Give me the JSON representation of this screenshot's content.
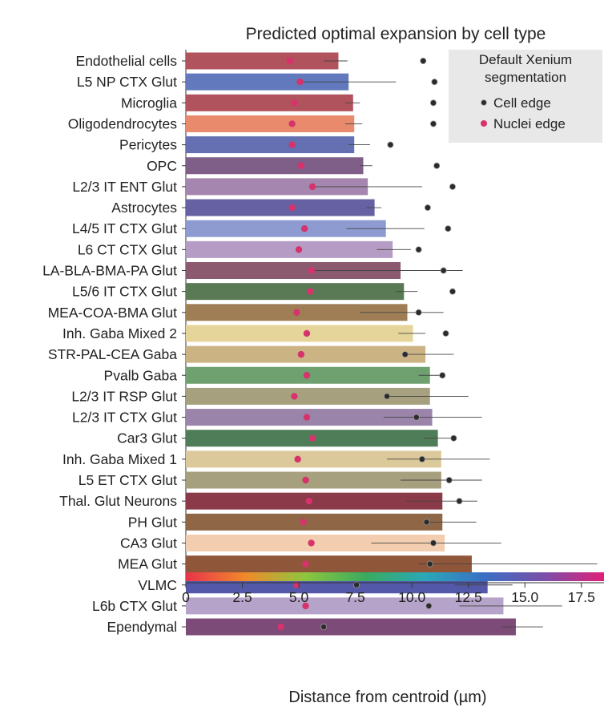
{
  "chart_data": {
    "type": "bar",
    "title": "Predicted optimal expansion by cell type",
    "xlabel": "Distance from centroid (µm)",
    "ylabel": "",
    "xlim": [
      0,
      18.5
    ],
    "xticks": [
      0,
      2.5,
      5.0,
      7.5,
      10.0,
      12.5,
      15.0,
      17.5
    ],
    "xtick_labels": [
      "0",
      "2.5",
      "5.0",
      "7.5",
      "10.0",
      "12.5",
      "15.0",
      "17.5"
    ],
    "orientation": "horizontal",
    "legend": {
      "title_line1": "Default Xenium",
      "title_line2": "segmentation",
      "position": "top-right",
      "entries": [
        {
          "label": "Cell edge",
          "color": "#2b2b2b"
        },
        {
          "label": "Nuclei edge",
          "color": "#d6336c"
        }
      ]
    },
    "colorbar": {
      "stops": [
        "#e8334a",
        "#f08a2a",
        "#8dc63f",
        "#3aaa5e",
        "#2aa8b8",
        "#3a6fc4",
        "#7a4fa8",
        "#e0207a"
      ]
    },
    "categories": [
      "Endothelial cells",
      "L5 NP CTX Glut",
      "Microglia",
      "Oligodendrocytes",
      "Pericytes",
      "OPC",
      "L2/3 IT ENT Glut",
      "Astrocytes",
      "L4/5 IT CTX Glut",
      "L6 CT CTX Glut",
      "LA-BLA-BMA-PA Glut",
      "L5/6 IT CTX Glut",
      "MEA-COA-BMA Glut",
      "Inh. Gaba Mixed 2",
      "STR-PAL-CEA Gaba",
      "Pvalb Gaba",
      "L2/3 IT RSP Glut",
      "L2/3 IT CTX Glut",
      "Car3 Glut",
      "Inh. Gaba Mixed 1",
      "L5 ET CTX Glut",
      "Thal. Glut Neurons",
      "PH Glut",
      "CA3 Glut",
      "MEA Glut",
      "VLMC",
      "L6b CTX Glut",
      "Ependymal"
    ],
    "series": [
      {
        "name": "Predicted optimal expansion",
        "values": [
          6.75,
          7.2,
          7.4,
          7.45,
          7.45,
          7.85,
          8.05,
          8.35,
          8.85,
          9.15,
          9.5,
          9.65,
          9.8,
          10.05,
          10.6,
          10.8,
          10.8,
          10.9,
          11.15,
          11.3,
          11.3,
          11.35,
          11.35,
          11.45,
          12.65,
          13.35,
          14.05,
          14.6
        ],
        "colors": [
          "#b0535c",
          "#6279bd",
          "#b0535c",
          "#e98a6d",
          "#6470b2",
          "#7f5e88",
          "#a486ae",
          "#6561a3",
          "#8e9bd0",
          "#b49cc4",
          "#8b5a6f",
          "#5a7a55",
          "#a07e55",
          "#e6d59a",
          "#cbb384",
          "#6ea070",
          "#a6a07e",
          "#9b84aa",
          "#4f7d58",
          "#dcc99b",
          "#a6a07e",
          "#8a3a48",
          "#8f6646",
          "#f2cdb0",
          "#8f563a",
          "#5358a8",
          "#b6a3c9",
          "#7d4b78"
        ],
        "err_low": [
          6.1,
          5.0,
          7.05,
          7.05,
          7.2,
          7.7,
          5.6,
          8.0,
          7.1,
          8.45,
          5.5,
          9.3,
          7.7,
          9.4,
          9.75,
          10.3,
          9.0,
          8.75,
          10.55,
          8.9,
          9.5,
          9.75,
          10.5,
          8.2,
          10.3,
          11.9,
          12.1,
          14.0
        ],
        "err_high": [
          7.15,
          9.3,
          7.7,
          7.8,
          8.15,
          8.25,
          10.45,
          8.65,
          10.55,
          9.95,
          12.25,
          10.25,
          11.4,
          10.6,
          11.85,
          11.3,
          12.5,
          13.1,
          11.9,
          13.45,
          13.1,
          12.9,
          12.85,
          13.95,
          18.2,
          14.45,
          16.65,
          15.8
        ]
      },
      {
        "name": "Cell edge",
        "values": [
          10.5,
          11.0,
          10.95,
          10.95,
          9.05,
          11.1,
          11.8,
          10.7,
          11.6,
          10.3,
          11.4,
          11.8,
          10.3,
          11.5,
          9.7,
          11.35,
          8.9,
          10.2,
          11.85,
          10.45,
          11.65,
          12.1,
          10.65,
          10.95,
          10.8,
          7.55,
          10.75,
          6.1
        ],
        "color": "#2b2b2b"
      },
      {
        "name": "Nuclei edge",
        "values": [
          4.6,
          5.05,
          4.8,
          4.7,
          4.7,
          5.1,
          5.6,
          4.7,
          5.25,
          5.0,
          5.55,
          5.5,
          4.9,
          5.35,
          5.1,
          5.35,
          4.8,
          5.35,
          5.6,
          4.95,
          5.3,
          5.45,
          5.2,
          5.55,
          5.3,
          4.9,
          5.3,
          4.2
        ],
        "color": "#d6336c"
      }
    ]
  }
}
